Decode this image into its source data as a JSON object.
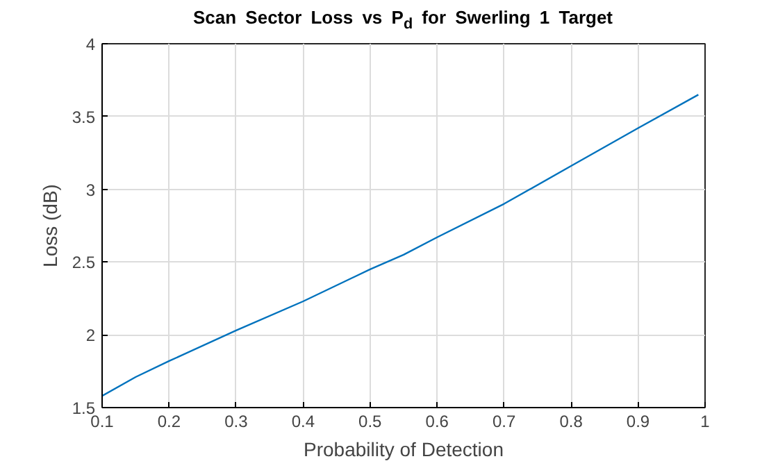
{
  "chart_data": {
    "type": "line",
    "title": "Scan Sector Loss vs P$_{d}$ for Swerling 1 Target",
    "xlabel": "Probability of Detection",
    "ylabel": "Loss (dB)",
    "x": [
      0.1,
      0.15,
      0.2,
      0.3,
      0.4,
      0.5,
      0.55,
      0.6,
      0.7,
      0.8,
      0.9,
      0.99
    ],
    "series": [
      {
        "color": "#0072bd",
        "values": [
          1.58,
          1.71,
          1.82,
          2.03,
          2.23,
          2.45,
          2.55,
          2.67,
          2.9,
          3.16,
          3.42,
          3.65
        ]
      }
    ],
    "xlim": [
      0.1,
      1
    ],
    "xticks": [
      0.1,
      0.2,
      0.3,
      0.4,
      0.5,
      0.6,
      0.7,
      0.8,
      0.9,
      1
    ],
    "ylim": [
      1.5,
      4
    ],
    "yticks": [
      1.5,
      2,
      2.5,
      3,
      3.5,
      4
    ],
    "grid": true,
    "marker": "none",
    "line_style": "solid"
  }
}
